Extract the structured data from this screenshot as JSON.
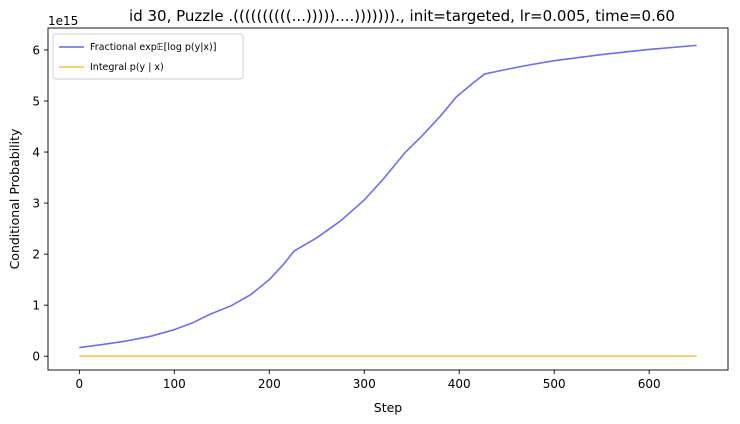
{
  "chart_data": {
    "type": "line",
    "title": "id 30, Puzzle .((((((((((...)))))....)))))))., init=targeted, lr=0.005, time=0.60",
    "xlabel": "Step",
    "ylabel": "Conditional Probability",
    "y_offset_label": "1e15",
    "xlim": [
      -33,
      683
    ],
    "ylim": [
      -0.27,
      6.43
    ],
    "xticks": [
      0,
      100,
      200,
      300,
      400,
      500,
      600
    ],
    "yticks": [
      0,
      1,
      2,
      3,
      4,
      5,
      6
    ],
    "xtick_labels": [
      "0",
      "100",
      "200",
      "300",
      "400",
      "500",
      "600"
    ],
    "ytick_labels": [
      "0",
      "1",
      "2",
      "3",
      "4",
      "5",
      "6"
    ],
    "legend_position": "upper left",
    "series": [
      {
        "name": "Fractional exp𝔼[log p(y|x)]",
        "color": "#6666ee",
        "x": [
          0,
          25,
          50,
          75,
          100,
          120,
          135,
          140,
          160,
          180,
          200,
          215,
          226,
          250,
          275,
          300,
          320,
          343,
          360,
          380,
          397,
          415,
          427,
          450,
          475,
          500,
          550,
          600,
          650
        ],
        "y": [
          0.17,
          0.23,
          0.3,
          0.39,
          0.52,
          0.66,
          0.8,
          0.84,
          0.99,
          1.2,
          1.5,
          1.8,
          2.06,
          2.32,
          2.65,
          3.06,
          3.47,
          3.99,
          4.3,
          4.7,
          5.08,
          5.36,
          5.53,
          5.62,
          5.71,
          5.79,
          5.91,
          6.01,
          6.09
        ]
      },
      {
        "name": "Integral p(y | x)",
        "color": "#ffc040",
        "x": [
          0,
          650
        ],
        "y": [
          0,
          0
        ]
      }
    ]
  }
}
